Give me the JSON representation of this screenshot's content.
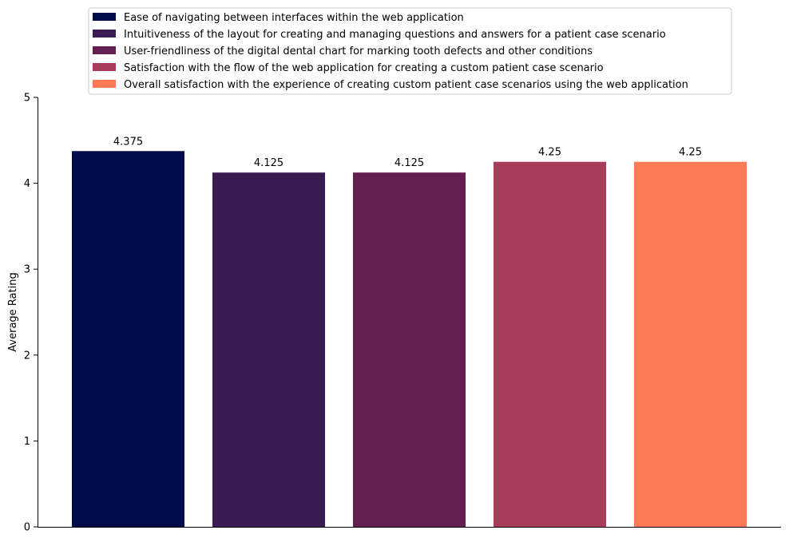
{
  "chart_data": {
    "type": "bar",
    "title": "",
    "xlabel": "",
    "ylabel": "Average Rating",
    "ylim": [
      0,
      5
    ],
    "yticks": [
      "0",
      "1",
      "2",
      "3",
      "4",
      "5"
    ],
    "grid": false,
    "legend_position": "top-center",
    "categories": [
      "Ease of navigating between interfaces within the web application",
      "Intuitiveness of the layout for creating and managing questions and answers for a patient case scenario",
      "User-friendliness of the digital dental chart for marking tooth defects and other conditions",
      "Satisfaction with the flow of the web application for creating a custom patient case scenario",
      "Overall satisfaction with the experience of creating custom patient case scenarios using the web application"
    ],
    "values": [
      4.375,
      4.125,
      4.125,
      4.25,
      4.25
    ],
    "value_labels": [
      "4.375",
      "4.125",
      "4.125",
      "4.25",
      "4.25"
    ],
    "colors": [
      "#000b4a",
      "#3c1a52",
      "#631f4f",
      "#a83d5a",
      "#ff7b55"
    ]
  }
}
